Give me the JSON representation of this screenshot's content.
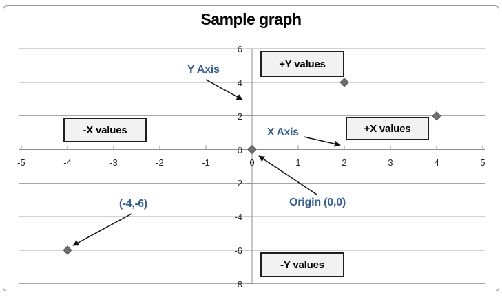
{
  "title": "Sample graph",
  "quadrant_labels": {
    "plus_y": "+Y values",
    "minus_x": "-X values",
    "plus_x": "+X values",
    "minus_y": "-Y values"
  },
  "annotations": {
    "y_axis": "Y Axis",
    "x_axis": "X Axis",
    "origin": "Origin (0,0)",
    "point_label": "(-4,-6)"
  },
  "colors": {
    "annotation_blue": "#365f91",
    "gridline_gray": "#a6a6a6",
    "marker_gray": "#6f6f6f",
    "box_fill": "#f2f2f2"
  },
  "chart_data": {
    "type": "scatter",
    "title": "Sample graph",
    "points": [
      [
        2,
        4
      ],
      [
        4,
        2
      ],
      [
        0,
        0
      ],
      [
        -4,
        -6
      ]
    ],
    "xlim": [
      -5,
      5
    ],
    "ylim": [
      -8,
      6
    ],
    "x_ticks": [
      -5,
      -4,
      -3,
      -2,
      -1,
      0,
      1,
      2,
      3,
      4,
      5
    ],
    "y_ticks": [
      6,
      4,
      2,
      0,
      -2,
      -4,
      -6,
      -8
    ],
    "grid": "horizontal-only",
    "legend": "none",
    "marker": "diamond",
    "annotations": [
      {
        "text": "Y Axis",
        "points_to": "y-axis"
      },
      {
        "text": "X Axis",
        "points_to": "x-axis"
      },
      {
        "text": "Origin (0,0)",
        "points_to": [
          0,
          0
        ]
      },
      {
        "text": "(-4,-6)",
        "points_to": [
          -4,
          -6
        ]
      },
      {
        "text": "+Y values",
        "quadrant": "top"
      },
      {
        "text": "-X values",
        "quadrant": "left"
      },
      {
        "text": "+X values",
        "quadrant": "right"
      },
      {
        "text": "-Y values",
        "quadrant": "bottom"
      }
    ]
  }
}
